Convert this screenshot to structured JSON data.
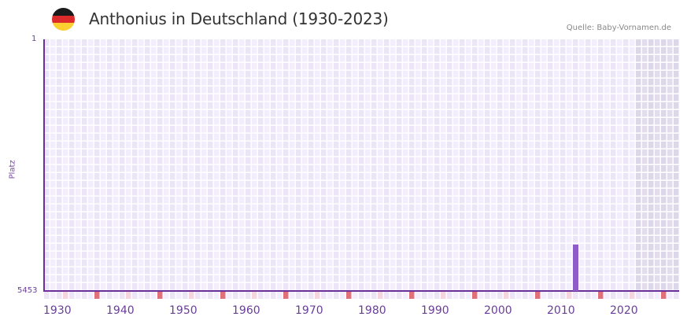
{
  "header": {
    "title": "Anthonius in Deutschland (1930-2023)",
    "source": "Quelle: Baby-Vornamen.de",
    "flag_colors": [
      "#1a1a1a",
      "#dd2a2a",
      "#fcd031"
    ]
  },
  "colors": {
    "bar": "#8e5bc8",
    "axis": "#6a2f9a",
    "grid_cell_a": "#f2eefb",
    "grid_cell_b": "#ebe5f7",
    "future_shade": "#e2dced",
    "decade_marker": "#e0707a",
    "half_decade_marker": "#f5d6df"
  },
  "chart_data": {
    "type": "bar",
    "title": "Anthonius in Deutschland (1930-2023)",
    "xlabel": "",
    "ylabel": "Platz",
    "y_axis_inverted": true,
    "ylim": [
      1,
      5453
    ],
    "y_tick_labels": [
      "1",
      "5453"
    ],
    "x_tick_labels": [
      "1930",
      "1940",
      "1950",
      "1960",
      "1970",
      "1980",
      "1990",
      "2000",
      "2010",
      "2020"
    ],
    "x_range": [
      1930,
      2030
    ],
    "shaded_future_from": 2024,
    "categories": [
      2014
    ],
    "values": [
      4455
    ],
    "series": [
      {
        "name": "Platz",
        "points": [
          {
            "year": 2014,
            "rank": 4455
          }
        ]
      }
    ],
    "grid": true,
    "legend": null
  },
  "axes": {
    "ylabel": "Platz",
    "ytop": "1",
    "ybottom": "5453",
    "xticks": [
      "1930",
      "1940",
      "1950",
      "1960",
      "1970",
      "1980",
      "1990",
      "2000",
      "2010",
      "2020"
    ]
  }
}
